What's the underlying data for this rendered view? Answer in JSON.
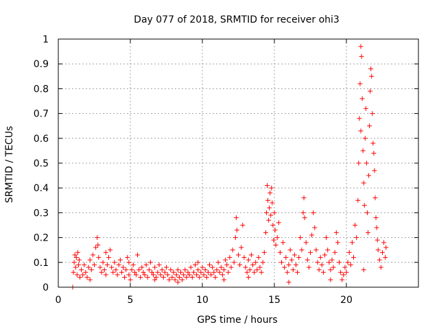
{
  "chart_data": {
    "type": "scatter",
    "title": "Day 077 of 2018, SRMTID for receiver ohi3",
    "xlabel": "GPS time / hours",
    "ylabel": "SRMTID / TECUs",
    "xlim": [
      0,
      25
    ],
    "ylim": [
      0,
      1
    ],
    "xticks": [
      0,
      5,
      10,
      15,
      20
    ],
    "xtick_labels": [
      "0",
      "5",
      "10",
      "15",
      "20"
    ],
    "yticks": [
      0,
      0.1,
      0.2,
      0.3,
      0.4,
      0.5,
      0.6,
      0.7,
      0.8,
      0.9,
      1
    ],
    "ytick_labels": [
      "0",
      "0.1",
      "0.2",
      "0.3",
      "0.4",
      "0.5",
      "0.6",
      "0.7",
      "0.8",
      "0.9",
      "1"
    ],
    "grid": true,
    "marker": "plus",
    "color": "#ff0000",
    "series": [
      {
        "name": "ohi3",
        "points": [
          [
            1.0,
            0.0
          ],
          [
            1.05,
            0.06
          ],
          [
            1.1,
            0.1
          ],
          [
            1.15,
            0.13
          ],
          [
            1.2,
            0.08
          ],
          [
            1.25,
            0.12
          ],
          [
            1.3,
            0.05
          ],
          [
            1.35,
            0.14
          ],
          [
            1.4,
            0.09
          ],
          [
            1.45,
            0.11
          ],
          [
            1.5,
            0.04
          ],
          [
            1.6,
            0.07
          ],
          [
            1.7,
            0.05
          ],
          [
            1.8,
            0.09
          ],
          [
            1.9,
            0.06
          ],
          [
            2.0,
            0.04
          ],
          [
            2.1,
            0.08
          ],
          [
            2.2,
            0.11
          ],
          [
            2.3,
            0.07
          ],
          [
            2.4,
            0.13
          ],
          [
            2.5,
            0.09
          ],
          [
            2.6,
            0.16
          ],
          [
            2.7,
            0.2
          ],
          [
            2.75,
            0.17
          ],
          [
            2.8,
            0.12
          ],
          [
            2.9,
            0.08
          ],
          [
            3.0,
            0.06
          ],
          [
            3.1,
            0.1
          ],
          [
            3.2,
            0.07
          ],
          [
            3.3,
            0.05
          ],
          [
            3.4,
            0.09
          ],
          [
            3.5,
            0.12
          ],
          [
            3.6,
            0.15
          ],
          [
            3.7,
            0.08
          ],
          [
            3.8,
            0.06
          ],
          [
            3.9,
            0.1
          ],
          [
            4.0,
            0.07
          ],
          [
            4.1,
            0.05
          ],
          [
            4.2,
            0.09
          ],
          [
            4.3,
            0.11
          ],
          [
            4.4,
            0.06
          ],
          [
            4.5,
            0.08
          ],
          [
            4.6,
            0.04
          ],
          [
            4.7,
            0.07
          ],
          [
            4.8,
            0.12
          ],
          [
            4.9,
            0.05
          ],
          [
            5.0,
            0.03
          ],
          [
            5.1,
            0.07
          ],
          [
            5.2,
            0.09
          ],
          [
            5.3,
            0.06
          ],
          [
            5.4,
            0.05
          ],
          [
            5.5,
            0.13
          ],
          [
            5.6,
            0.07
          ],
          [
            5.7,
            0.04
          ],
          [
            5.8,
            0.08
          ],
          [
            5.9,
            0.06
          ],
          [
            6.0,
            0.05
          ],
          [
            6.1,
            0.09
          ],
          [
            6.2,
            0.04
          ],
          [
            6.3,
            0.07
          ],
          [
            6.4,
            0.1
          ],
          [
            6.5,
            0.06
          ],
          [
            6.6,
            0.05
          ],
          [
            6.7,
            0.08
          ],
          [
            6.8,
            0.04
          ],
          [
            6.9,
            0.06
          ],
          [
            7.0,
            0.09
          ],
          [
            7.1,
            0.05
          ],
          [
            7.2,
            0.07
          ],
          [
            7.3,
            0.04
          ],
          [
            7.4,
            0.06
          ],
          [
            7.5,
            0.08
          ],
          [
            7.6,
            0.05
          ],
          [
            7.7,
            0.03
          ],
          [
            7.8,
            0.07
          ],
          [
            7.9,
            0.04
          ],
          [
            8.0,
            0.06
          ],
          [
            8.1,
            0.03
          ],
          [
            8.2,
            0.05
          ],
          [
            8.3,
            0.07
          ],
          [
            8.4,
            0.04
          ],
          [
            8.5,
            0.06
          ],
          [
            8.6,
            0.03
          ],
          [
            8.7,
            0.05
          ],
          [
            8.8,
            0.07
          ],
          [
            8.9,
            0.04
          ],
          [
            9.0,
            0.06
          ],
          [
            9.1,
            0.05
          ],
          [
            9.2,
            0.08
          ],
          [
            9.3,
            0.04
          ],
          [
            9.4,
            0.06
          ],
          [
            9.5,
            0.09
          ],
          [
            9.6,
            0.05
          ],
          [
            9.7,
            0.07
          ],
          [
            9.8,
            0.04
          ],
          [
            9.9,
            0.06
          ],
          [
            10.0,
            0.08
          ],
          [
            10.1,
            0.05
          ],
          [
            10.2,
            0.07
          ],
          [
            10.3,
            0.04
          ],
          [
            10.4,
            0.06
          ],
          [
            10.5,
            0.09
          ],
          [
            10.6,
            0.05
          ],
          [
            10.7,
            0.08
          ],
          [
            10.8,
            0.06
          ],
          [
            10.9,
            0.04
          ],
          [
            11.0,
            0.07
          ],
          [
            11.1,
            0.1
          ],
          [
            11.2,
            0.06
          ],
          [
            11.3,
            0.08
          ],
          [
            11.4,
            0.05
          ],
          [
            11.5,
            0.07
          ],
          [
            11.6,
            0.11
          ],
          [
            11.7,
            0.09
          ],
          [
            11.8,
            0.06
          ],
          [
            11.9,
            0.12
          ],
          [
            12.0,
            0.08
          ],
          [
            12.1,
            0.15
          ],
          [
            12.2,
            0.1
          ],
          [
            12.3,
            0.2
          ],
          [
            12.35,
            0.28
          ],
          [
            12.4,
            0.23
          ],
          [
            12.5,
            0.13
          ],
          [
            12.6,
            0.09
          ],
          [
            12.7,
            0.16
          ],
          [
            12.8,
            0.25
          ],
          [
            12.9,
            0.12
          ],
          [
            13.0,
            0.08
          ],
          [
            13.1,
            0.06
          ],
          [
            13.2,
            0.11
          ],
          [
            13.3,
            0.07
          ],
          [
            13.4,
            0.13
          ],
          [
            13.5,
            0.09
          ],
          [
            13.6,
            0.06
          ],
          [
            13.7,
            0.1
          ],
          [
            13.8,
            0.07
          ],
          [
            13.9,
            0.12
          ],
          [
            14.0,
            0.08
          ],
          [
            14.1,
            0.06
          ],
          [
            14.2,
            0.1
          ],
          [
            14.3,
            0.14
          ],
          [
            14.4,
            0.22
          ],
          [
            14.45,
            0.3
          ],
          [
            14.5,
            0.41
          ],
          [
            14.55,
            0.35
          ],
          [
            14.6,
            0.27
          ],
          [
            14.65,
            0.32
          ],
          [
            14.7,
            0.38
          ],
          [
            14.75,
            0.29
          ],
          [
            14.8,
            0.4
          ],
          [
            14.85,
            0.34
          ],
          [
            14.9,
            0.25
          ],
          [
            14.95,
            0.19
          ],
          [
            15.0,
            0.3
          ],
          [
            15.05,
            0.23
          ],
          [
            15.1,
            0.17
          ],
          [
            15.2,
            0.2
          ],
          [
            15.3,
            0.26
          ],
          [
            15.4,
            0.14
          ],
          [
            15.5,
            0.1
          ],
          [
            15.6,
            0.18
          ],
          [
            15.7,
            0.08
          ],
          [
            15.8,
            0.12
          ],
          [
            15.9,
            0.06
          ],
          [
            16.0,
            0.09
          ],
          [
            16.1,
            0.15
          ],
          [
            16.2,
            0.11
          ],
          [
            16.3,
            0.07
          ],
          [
            16.4,
            0.13
          ],
          [
            16.5,
            0.09
          ],
          [
            16.6,
            0.06
          ],
          [
            16.7,
            0.12
          ],
          [
            16.8,
            0.2
          ],
          [
            16.9,
            0.15
          ],
          [
            17.0,
            0.3
          ],
          [
            17.05,
            0.36
          ],
          [
            17.1,
            0.28
          ],
          [
            17.2,
            0.18
          ],
          [
            17.3,
            0.11
          ],
          [
            17.4,
            0.08
          ],
          [
            17.5,
            0.14
          ],
          [
            17.6,
            0.21
          ],
          [
            17.7,
            0.3
          ],
          [
            17.8,
            0.24
          ],
          [
            17.9,
            0.15
          ],
          [
            18.0,
            0.1
          ],
          [
            18.1,
            0.07
          ],
          [
            18.2,
            0.12
          ],
          [
            18.3,
            0.09
          ],
          [
            18.4,
            0.06
          ],
          [
            18.5,
            0.13
          ],
          [
            18.6,
            0.2
          ],
          [
            18.7,
            0.15
          ],
          [
            18.8,
            0.1
          ],
          [
            18.9,
            0.07
          ],
          [
            19.0,
            0.11
          ],
          [
            19.1,
            0.08
          ],
          [
            19.2,
            0.14
          ],
          [
            19.3,
            0.22
          ],
          [
            19.4,
            0.18
          ],
          [
            19.5,
            0.1
          ],
          [
            19.6,
            0.06
          ],
          [
            19.7,
            0.03
          ],
          [
            19.8,
            0.05
          ],
          [
            19.9,
            0.08
          ],
          [
            20.0,
            0.06
          ],
          [
            20.1,
            0.1
          ],
          [
            20.2,
            0.14
          ],
          [
            20.3,
            0.09
          ],
          [
            20.4,
            0.18
          ],
          [
            20.5,
            0.12
          ],
          [
            20.6,
            0.25
          ],
          [
            20.7,
            0.2
          ],
          [
            20.8,
            0.35
          ],
          [
            20.85,
            0.5
          ],
          [
            20.9,
            0.68
          ],
          [
            20.95,
            0.82
          ],
          [
            21.0,
            0.97
          ],
          [
            21.05,
            0.93
          ],
          [
            21.1,
            0.76
          ],
          [
            21.15,
            0.55
          ],
          [
            21.2,
            0.42
          ],
          [
            21.25,
            0.33
          ],
          [
            21.3,
            0.6
          ],
          [
            21.35,
            0.72
          ],
          [
            21.4,
            0.5
          ],
          [
            21.45,
            0.3
          ],
          [
            21.5,
            0.22
          ],
          [
            21.55,
            0.45
          ],
          [
            21.6,
            0.65
          ],
          [
            21.65,
            0.79
          ],
          [
            21.7,
            0.88
          ],
          [
            21.75,
            0.85
          ],
          [
            21.8,
            0.7
          ],
          [
            21.85,
            0.58
          ],
          [
            21.9,
            0.54
          ],
          [
            21.95,
            0.47
          ],
          [
            22.0,
            0.36
          ],
          [
            22.05,
            0.28
          ],
          [
            22.1,
            0.24
          ],
          [
            22.15,
            0.19
          ],
          [
            22.2,
            0.15
          ],
          [
            22.3,
            0.11
          ],
          [
            22.4,
            0.08
          ],
          [
            22.5,
            0.14
          ],
          [
            22.6,
            0.18
          ],
          [
            22.7,
            0.12
          ],
          [
            22.75,
            0.16
          ],
          [
            21.2,
            0.07
          ],
          [
            21.0,
            0.63
          ],
          [
            2.2,
            0.03
          ],
          [
            3.3,
            0.14
          ],
          [
            4.9,
            0.1
          ],
          [
            6.7,
            0.03
          ],
          [
            8.3,
            0.02
          ],
          [
            9.7,
            0.1
          ],
          [
            11.5,
            0.03
          ],
          [
            13.2,
            0.04
          ],
          [
            16.0,
            0.02
          ],
          [
            18.9,
            0.03
          ]
        ]
      }
    ]
  }
}
